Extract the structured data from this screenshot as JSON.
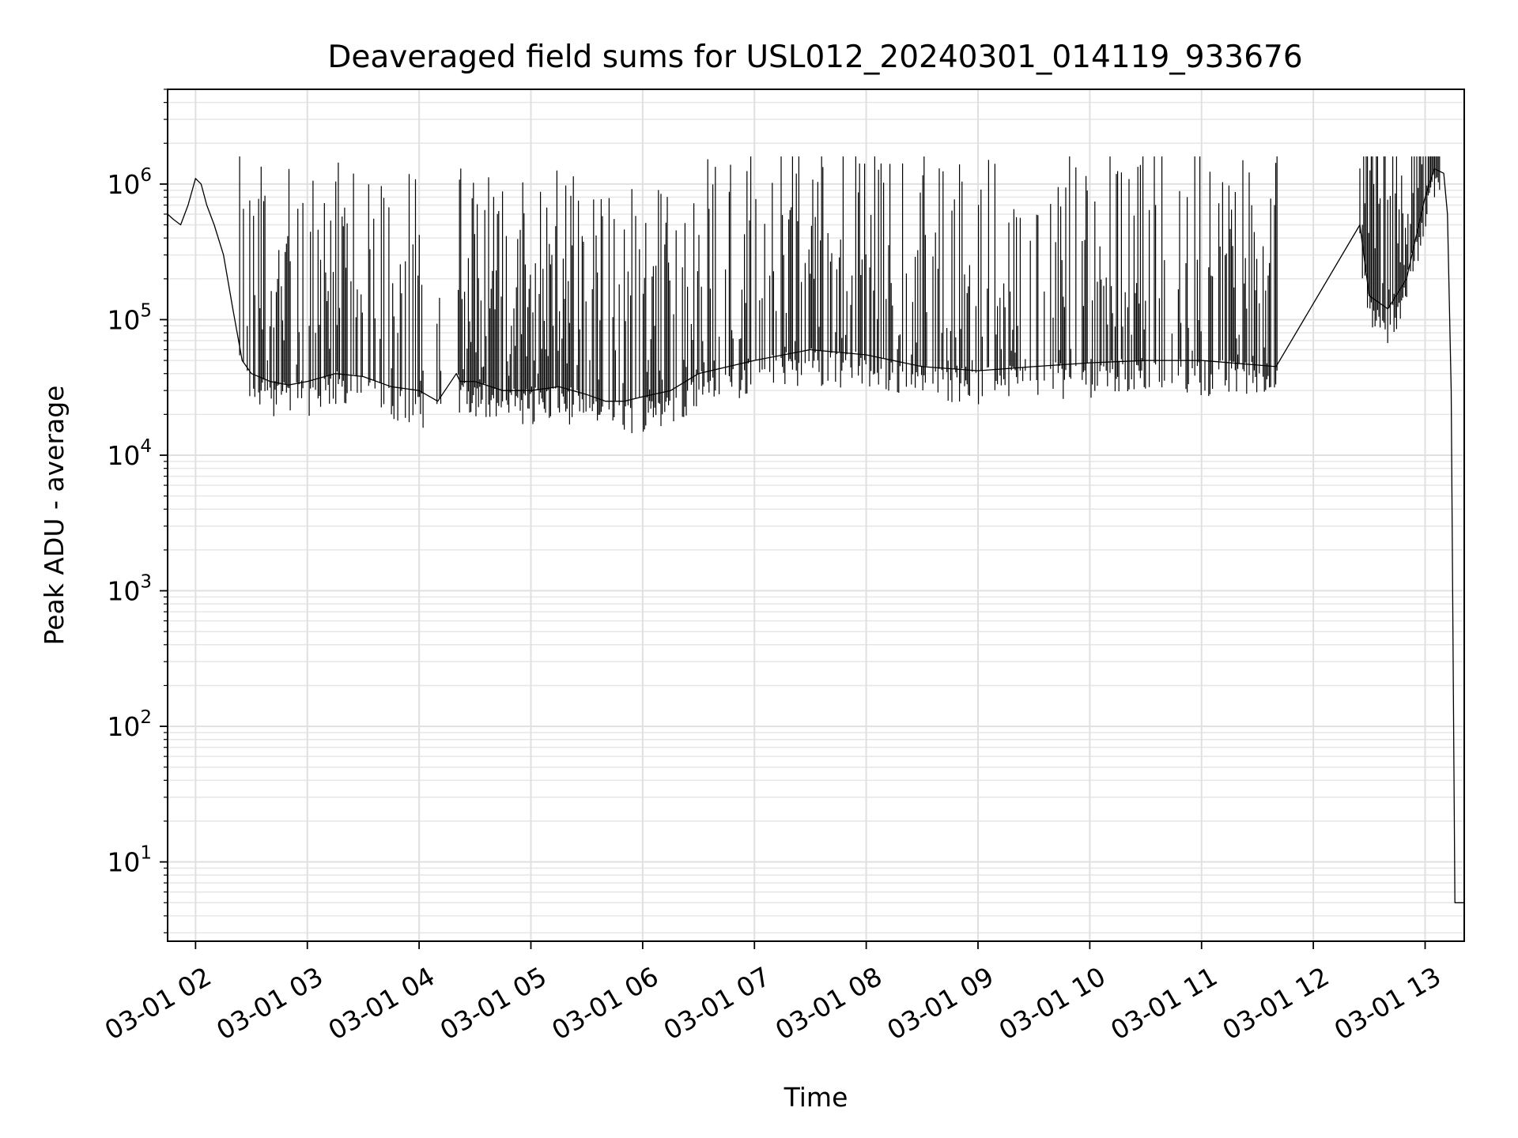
{
  "chart_data": {
    "type": "line",
    "title": "Deaveraged field sums for USL012_20240301_014119_933676",
    "xlabel": "Time",
    "ylabel": "Peak ADU - average",
    "y_scale": "log",
    "ylim": [
      2.6,
      5000000
    ],
    "xlim": [
      "2024-03-01 01:45",
      "2024-03-01 13:21"
    ],
    "grid": true,
    "line_color": "#000000",
    "x_ticks": [
      {
        "value": "2024-03-01 02:00",
        "label": "03-01 02"
      },
      {
        "value": "2024-03-01 03:00",
        "label": "03-01 03"
      },
      {
        "value": "2024-03-01 04:00",
        "label": "03-01 04"
      },
      {
        "value": "2024-03-01 05:00",
        "label": "03-01 05"
      },
      {
        "value": "2024-03-01 06:00",
        "label": "03-01 06"
      },
      {
        "value": "2024-03-01 07:00",
        "label": "03-01 07"
      },
      {
        "value": "2024-03-01 08:00",
        "label": "03-01 08"
      },
      {
        "value": "2024-03-01 09:00",
        "label": "03-01 09"
      },
      {
        "value": "2024-03-01 10:00",
        "label": "03-01 10"
      },
      {
        "value": "2024-03-01 11:00",
        "label": "03-01 11"
      },
      {
        "value": "2024-03-01 12:00",
        "label": "03-01 12"
      },
      {
        "value": "2024-03-01 13:00",
        "label": "03-01 13"
      }
    ],
    "y_ticks": [
      {
        "value": 10,
        "base": "10",
        "exp": "1"
      },
      {
        "value": 100,
        "base": "10",
        "exp": "2"
      },
      {
        "value": 1000,
        "base": "10",
        "exp": "3"
      },
      {
        "value": 10000,
        "base": "10",
        "exp": "4"
      },
      {
        "value": 100000,
        "base": "10",
        "exp": "5"
      },
      {
        "value": 1000000,
        "base": "10",
        "exp": "6"
      }
    ],
    "series": [
      {
        "x": [
          "2024-03-01 01:45",
          "2024-03-01 01:48",
          "2024-03-01 01:52",
          "2024-03-01 01:56",
          "2024-03-01 02:00",
          "2024-03-01 02:03",
          "2024-03-01 02:06",
          "2024-03-01 02:10",
          "2024-03-01 02:15",
          "2024-03-01 02:20",
          "2024-03-01 02:25",
          "2024-03-01 02:30",
          "2024-03-01 02:40",
          "2024-03-01 02:50",
          "2024-03-01 03:00",
          "2024-03-01 03:15",
          "2024-03-01 03:30",
          "2024-03-01 03:45",
          "2024-03-01 04:00",
          "2024-03-01 04:10",
          "2024-03-01 04:20",
          "2024-03-01 04:22",
          "2024-03-01 04:30",
          "2024-03-01 04:45",
          "2024-03-01 05:00",
          "2024-03-01 05:15",
          "2024-03-01 05:30",
          "2024-03-01 05:40",
          "2024-03-01 05:50",
          "2024-03-01 06:00",
          "2024-03-01 06:15",
          "2024-03-01 06:30",
          "2024-03-01 07:00",
          "2024-03-01 07:30",
          "2024-03-01 08:00",
          "2024-03-01 08:30",
          "2024-03-01 09:00",
          "2024-03-01 09:30",
          "2024-03-01 10:00",
          "2024-03-01 10:30",
          "2024-03-01 11:00",
          "2024-03-01 11:40",
          "2024-03-01 12:25",
          "2024-03-01 12:30",
          "2024-03-01 12:40",
          "2024-03-01 12:50",
          "2024-03-01 13:00",
          "2024-03-01 13:05",
          "2024-03-01 13:10",
          "2024-03-01 13:12",
          "2024-03-01 13:14",
          "2024-03-01 13:16",
          "2024-03-01 13:21"
        ],
        "y": [
          600000,
          550000,
          500000,
          700000,
          1100000,
          1000000,
          700000,
          500000,
          300000,
          120000,
          50000,
          40000,
          35000,
          33000,
          35000,
          40000,
          38000,
          32000,
          30000,
          25000,
          40000,
          35000,
          35000,
          30000,
          30000,
          32000,
          28000,
          25000,
          25000,
          27000,
          30000,
          40000,
          50000,
          60000,
          55000,
          45000,
          42000,
          45000,
          48000,
          50000,
          50000,
          45000,
          500000,
          150000,
          120000,
          200000,
          800000,
          1300000,
          1200000,
          600000,
          30000,
          5,
          5
        ]
      }
    ]
  }
}
